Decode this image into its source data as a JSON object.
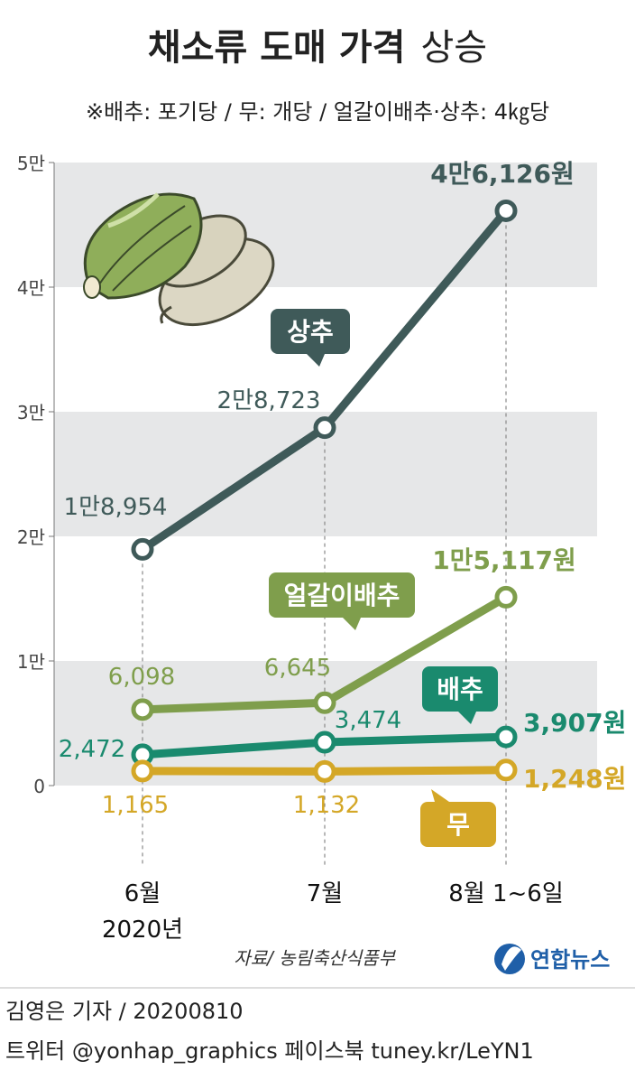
{
  "header": {
    "title_bold": "채소류 도매 가격",
    "title_light": "상승",
    "subtitle": "※배추: 포기당 / 무: 개당 / 얼갈이배추·상추: 4㎏당"
  },
  "chart_data": {
    "type": "line",
    "categories": [
      "6월\n2020년",
      "7월",
      "8월 1~6일"
    ],
    "category_lines": [
      [
        "6월",
        "2020년"
      ],
      [
        "7월"
      ],
      [
        "8월 1~6일"
      ]
    ],
    "y_tick_labels": [
      "0",
      "1만",
      "2만",
      "3만",
      "4만",
      "5만"
    ],
    "y_ticks": [
      0,
      10000,
      20000,
      30000,
      40000,
      50000
    ],
    "ylim": [
      0,
      50000
    ],
    "grid_bands": true,
    "series": [
      {
        "name": "상추",
        "values": [
          18954,
          28723,
          46126
        ],
        "labels": [
          "1만8,954",
          "2만8,723",
          "4만6,126원"
        ],
        "color": "#3f5a59"
      },
      {
        "name": "얼갈이배추",
        "values": [
          6098,
          6645,
          15117
        ],
        "labels": [
          "6,098",
          "6,645",
          "1만5,117원"
        ],
        "color": "#7f9e4c"
      },
      {
        "name": "배추",
        "values": [
          2472,
          3474,
          3907
        ],
        "labels": [
          "2,472",
          "3,474",
          "3,907원"
        ],
        "color": "#1a8a6e"
      },
      {
        "name": "무",
        "values": [
          1165,
          1132,
          1248
        ],
        "labels": [
          "1,165",
          "1,132",
          "1,248원"
        ],
        "color": "#d4a727"
      }
    ]
  },
  "footer": {
    "source": "자료/ 농림축산식품부",
    "logo": "연합뉴스",
    "reporter": "김영은 기자 / 20200810",
    "social": "트위터 @yonhap_graphics  페이스북 tuney.kr/LeYN1"
  },
  "colors": {
    "band": "#e6e7e8",
    "logo_blue": "#1f5fa8",
    "cabbage_green": "#8fae5a",
    "radish": "#dcd7c4"
  },
  "icons": [
    "cabbage-radish-illustration",
    "yonhap-logo-icon"
  ]
}
